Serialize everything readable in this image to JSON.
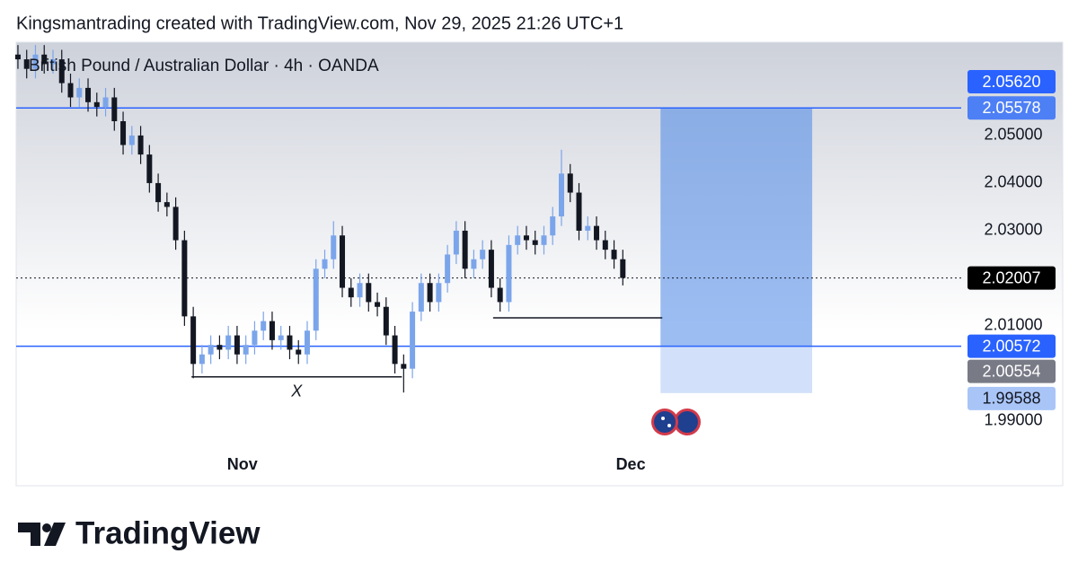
{
  "header": "Kingsmantrading created with TradingView.com, Nov 29, 2025 21:26 UTC+1",
  "logo": "TradingView",
  "chart_data": {
    "type": "candlestick",
    "title": "British Pound / Australian Dollar · 4h · OANDA",
    "xlim": [
      -0.2,
      107.6
    ],
    "xticks": [
      {
        "value": 25.6,
        "label": "Nov"
      },
      {
        "value": 69.9,
        "label": "Dec"
      }
    ],
    "ylim": [
      1.985,
      2.0696
    ],
    "yticks": [
      {
        "value": 2.05,
        "label": "2.05000"
      },
      {
        "value": 2.04,
        "label": "2.04000"
      },
      {
        "value": 2.03,
        "label": "2.03000"
      },
      {
        "value": 2.01,
        "label": "2.01000"
      },
      {
        "value": 1.99,
        "label": "1.99000"
      }
    ],
    "up_color": "#7ba5ea",
    "down_color": "#131722",
    "open": [
      2.067,
      2.066,
      2.064,
      2.067,
      2.065,
      2.066,
      2.061,
      2.058,
      2.06,
      2.057,
      2.056,
      2.058,
      2.053,
      2.048,
      2.05,
      2.046,
      2.04,
      2.036,
      2.035,
      2.028,
      2.012,
      2.002,
      2.004,
      2.006,
      2.005,
      2.008,
      2.004,
      2.006,
      2.009,
      2.011,
      2.007,
      2.008,
      2.005,
      2.004,
      2.009,
      2.022,
      2.024,
      2.029,
      2.018,
      2.016,
      2.019,
      2.015,
      2.014,
      2.008,
      2.002,
      2.001,
      2.013,
      2.019,
      2.015,
      2.019,
      2.025,
      2.03,
      2.022,
      2.024,
      2.026,
      2.018,
      2.015,
      2.027,
      2.029,
      2.028,
      2.027,
      2.029,
      2.033,
      2.042,
      2.038,
      2.03,
      2.031,
      2.028,
      2.026,
      2.024
    ],
    "high": [
      2.069,
      2.068,
      2.069,
      2.069,
      2.068,
      2.068,
      2.063,
      2.062,
      2.062,
      2.059,
      2.06,
      2.06,
      2.055,
      2.052,
      2.052,
      2.048,
      2.042,
      2.038,
      2.037,
      2.03,
      2.014,
      2.006,
      2.008,
      2.008,
      2.01,
      2.01,
      2.008,
      2.011,
      2.013,
      2.013,
      2.01,
      2.01,
      2.007,
      2.011,
      2.024,
      2.026,
      2.032,
      2.031,
      2.02,
      2.021,
      2.021,
      2.017,
      2.016,
      2.01,
      2.004,
      2.015,
      2.021,
      2.021,
      2.021,
      2.027,
      2.032,
      2.032,
      2.026,
      2.028,
      2.028,
      2.02,
      2.029,
      2.031,
      2.031,
      2.03,
      2.031,
      2.035,
      2.047,
      2.044,
      2.04,
      2.033,
      2.033,
      2.03,
      2.028,
      2.026
    ],
    "low": [
      2.064,
      2.062,
      2.062,
      2.063,
      2.063,
      2.059,
      2.056,
      2.056,
      2.055,
      2.054,
      2.054,
      2.051,
      2.046,
      2.046,
      2.044,
      2.038,
      2.034,
      2.033,
      2.026,
      2.01,
      1.999,
      2.0,
      2.002,
      2.003,
      2.003,
      2.002,
      2.002,
      2.004,
      2.007,
      2.005,
      2.005,
      2.003,
      2.002,
      2.002,
      2.007,
      2.02,
      2.022,
      2.016,
      2.014,
      2.014,
      2.013,
      2.012,
      2.006,
      2.0,
      1.996,
      1.999,
      2.011,
      2.013,
      2.013,
      2.017,
      2.023,
      2.02,
      2.02,
      2.022,
      2.016,
      2.013,
      2.013,
      2.025,
      2.026,
      2.025,
      2.025,
      2.027,
      2.031,
      2.036,
      2.028,
      2.028,
      2.026,
      2.024,
      2.022,
      2.0185
    ],
    "close": [
      2.066,
      2.064,
      2.067,
      2.065,
      2.066,
      2.061,
      2.058,
      2.06,
      2.057,
      2.056,
      2.058,
      2.053,
      2.048,
      2.05,
      2.046,
      2.04,
      2.036,
      2.035,
      2.028,
      2.012,
      2.002,
      2.004,
      2.006,
      2.005,
      2.008,
      2.004,
      2.006,
      2.009,
      2.011,
      2.007,
      2.008,
      2.005,
      2.004,
      2.009,
      2.022,
      2.024,
      2.029,
      2.018,
      2.016,
      2.019,
      2.015,
      2.014,
      2.008,
      2.002,
      2.001,
      2.013,
      2.019,
      2.015,
      2.019,
      2.025,
      2.03,
      2.022,
      2.024,
      2.026,
      2.018,
      2.015,
      2.027,
      2.029,
      2.028,
      2.027,
      2.029,
      2.033,
      2.042,
      2.038,
      2.03,
      2.031,
      2.028,
      2.026,
      2.024,
      2.02007
    ],
    "price_labels": [
      {
        "value": 2.0562,
        "label": "2.05620",
        "color": "#2962ff"
      },
      {
        "value": 2.05578,
        "label": "2.05578",
        "color": "#4d7ff5"
      },
      {
        "value": 2.02007,
        "label": "2.02007",
        "color": "#000000"
      },
      {
        "value": 2.00572,
        "label": "2.00572",
        "color": "#2962ff"
      },
      {
        "value": 2.00554,
        "label": "2.00554",
        "color": "#787b86"
      },
      {
        "value": 1.99588,
        "label": "1.99588",
        "color": "#a9c5f7"
      }
    ],
    "levels": [
      {
        "price": 2.05578,
        "color": "#2962ff"
      },
      {
        "price": 2.00572,
        "color": "#2962ff"
      },
      {
        "price": 2.02007,
        "color": "#131722",
        "dotted": true
      }
    ],
    "position": {
      "top": 2.05578,
      "entry": 2.00572,
      "bottom": 1.99588,
      "x": [
        73.3,
        90.6
      ]
    },
    "trendlines": [
      {
        "price": 1.9993,
        "x": [
          19.8,
          43.8
        ],
        "text": "X"
      },
      {
        "price": 2.0117,
        "x": [
          54.2,
          73.5
        ]
      }
    ]
  }
}
